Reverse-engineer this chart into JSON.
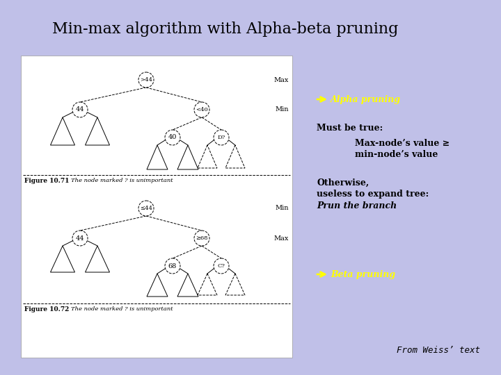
{
  "title": "Min-max algorithm with Alpha-beta pruning",
  "title_fontsize": 16,
  "title_font": "serif",
  "bg_color": "#c0c0e8",
  "image_bg": "#ffffff",
  "alpha_pruning_label": "⇐ Alpha pruning",
  "beta_pruning_label": "⇐ Beta pruning",
  "must_be_true": "Must be true:",
  "condition_line1": "Max-node’s value ≥",
  "condition_line2": "min-node’s value",
  "otherwise": "Otherwise,",
  "useless": "useless to expand tree:",
  "prun": "Prun the branch",
  "from_weiss": "From Weiss’ text",
  "text_color": "#000000",
  "yellow_text_color": "#ffff00",
  "fig_width": 7.2,
  "fig_height": 5.4,
  "dpi": 100
}
